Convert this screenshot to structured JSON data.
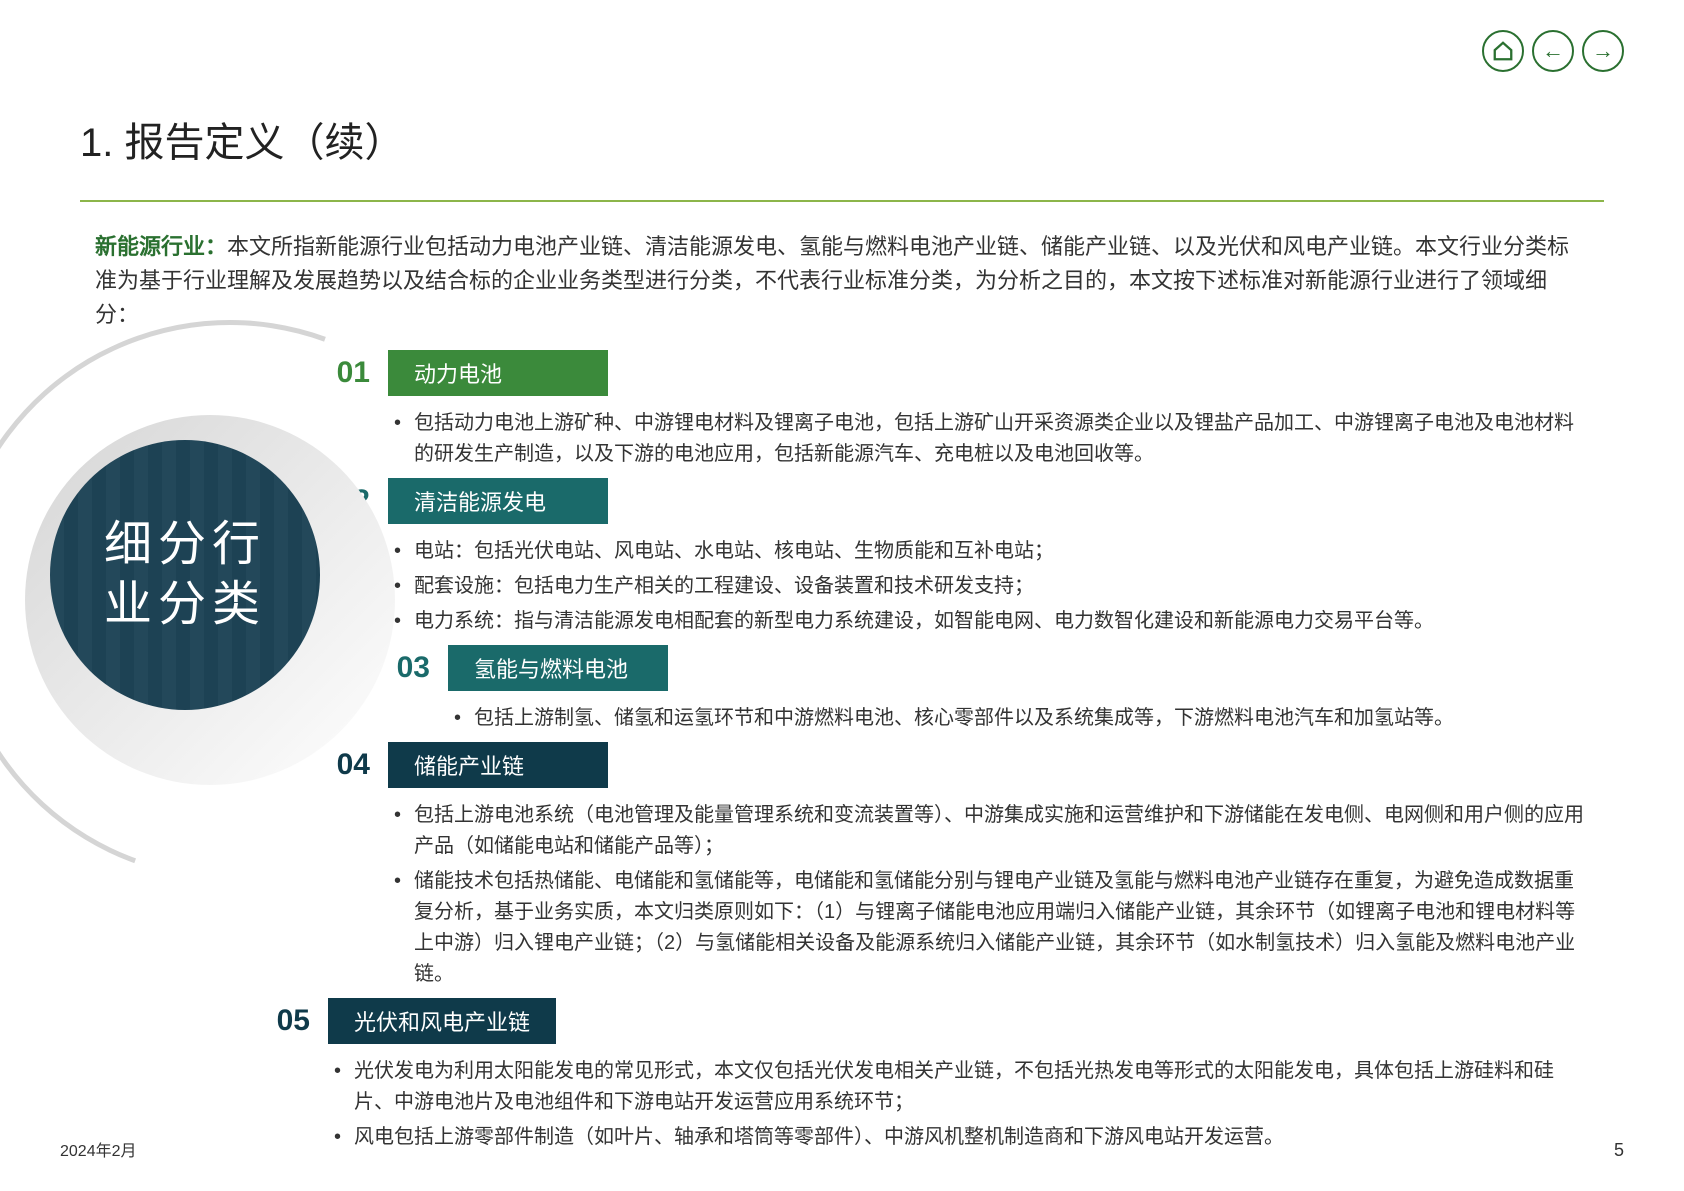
{
  "header": {
    "title": "1. 报告定义（续）"
  },
  "intro": {
    "lead": "新能源行业：",
    "text": "本文所指新能源行业包括动力电池产业链、清洁能源发电、氢能与燃料电池产业链、储能产业链、以及光伏和风电产业链。本文行业分类标准为基于行业理解及发展趋势以及结合标的企业业务类型进行分类，不代表行业标准分类，为分析之目的，本文按下述标准对新能源行业进行了领域细分："
  },
  "circle_label": "细分行\n业分类",
  "colors": {
    "divider": "#8cb54a",
    "nav_border": "#2a7030",
    "lead": "#2a7030"
  },
  "sections": [
    {
      "num": "01",
      "label": "动力电池",
      "num_color": "#3b8a3b",
      "bar_color": "#3b8a3b",
      "bullets": [
        "包括动力电池上游矿种、中游锂电材料及锂离子电池，包括上游矿山开采资源类企业以及锂盐产品加工、中游锂离子电池及电池材料的研发生产制造，以及下游的电池应用，包括新能源汽车、充电桩以及电池回收等。"
      ]
    },
    {
      "num": "02",
      "label": "清洁能源发电",
      "num_color": "#1a6a6a",
      "bar_color": "#1a6a6a",
      "bullets": [
        "电站：包括光伏电站、风电站、水电站、核电站、生物质能和互补电站；",
        "配套设施：包括电力生产相关的工程建设、设备装置和技术研发支持；",
        "电力系统：指与清洁能源发电相配套的新型电力系统建设，如智能电网、电力数智化建设和新能源电力交易平台等。"
      ]
    },
    {
      "num": "03",
      "label": "氢能与燃料电池",
      "num_color": "#1a6a6a",
      "bar_color": "#1a6a6a",
      "bullets": [
        "包括上游制氢、储氢和运氢环节和中游燃料电池、核心零部件以及系统集成等，下游燃料电池汽车和加氢站等。"
      ],
      "indent": 60
    },
    {
      "num": "04",
      "label": "储能产业链",
      "num_color": "#0f3a4a",
      "bar_color": "#0f3a4a",
      "bullets": [
        "包括上游电池系统（电池管理及能量管理系统和变流装置等）、中游集成实施和运营维护和下游储能在发电侧、电网侧和用户侧的应用产品（如储能电站和储能产品等）；",
        "储能技术包括热储能、电储能和氢储能等，电储能和氢储能分别与锂电产业链及氢能与燃料电池产业链存在重复，为避免造成数据重复分析，基于业务实质，本文归类原则如下：（1）与锂离子储能电池应用端归入储能产业链，其余环节（如锂离子电池和锂电材料等上中游）归入锂电产业链；（2）与氢储能相关设备及能源系统归入储能产业链，其余环节（如水制氢技术）归入氢能及燃料电池产业链。"
      ]
    },
    {
      "num": "05",
      "label": "光伏和风电产业链",
      "num_color": "#0f3a4a",
      "bar_color": "#0f3a4a",
      "bullets": [
        "光伏发电为利用太阳能发电的常见形式，本文仅包括光伏发电相关产业链，不包括光热发电等形式的太阳能发电，具体包括上游硅料和硅片、中游电池片及电池组件和下游电站开发运营应用系统环节；",
        "风电包括上游零部件制造（如叶片、轴承和塔筒等零部件）、中游风机整机制造商和下游风电站开发运营。"
      ],
      "outdent": -60
    }
  ],
  "footer": {
    "date": "2024年2月",
    "page": "5"
  }
}
